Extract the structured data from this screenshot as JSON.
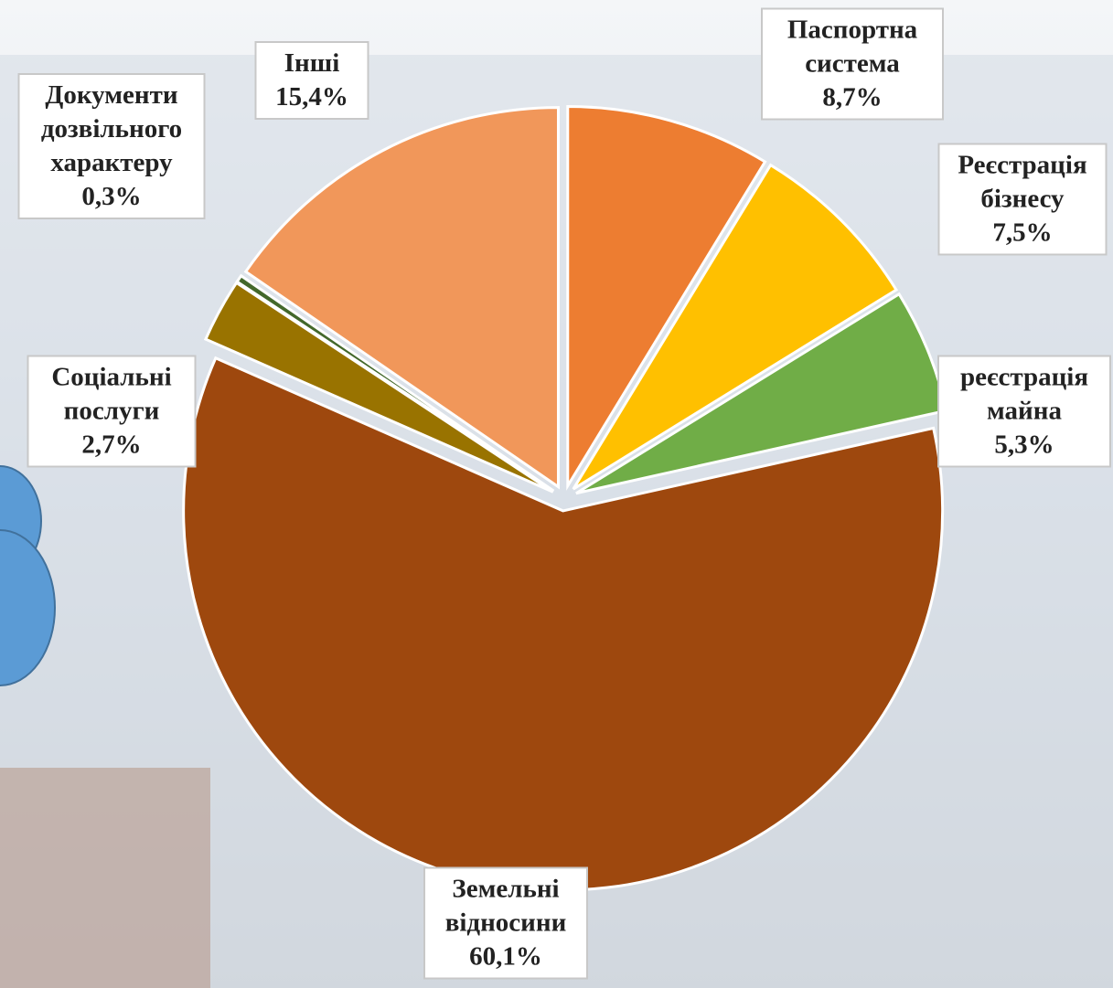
{
  "chart_data": {
    "type": "pie",
    "categories": [
      "Паспортна система",
      "Реєстрація бізнесу",
      "реєстрація майна",
      "Земельні відносини",
      "Соціальні послуги",
      "Документи дозвільного характеру",
      "Інші"
    ],
    "values": [
      8.7,
      7.5,
      5.3,
      60.1,
      2.7,
      0.3,
      15.4
    ],
    "value_labels": [
      "8,7%",
      "7,5%",
      "5,3%",
      "60,1%",
      "2,7%",
      "0,3%",
      "15,4%"
    ],
    "colors": [
      "#ED7D31",
      "#FFC000",
      "#70AD47",
      "#9E480E",
      "#997300",
      "#43682B",
      "#F1975A"
    ]
  }
}
